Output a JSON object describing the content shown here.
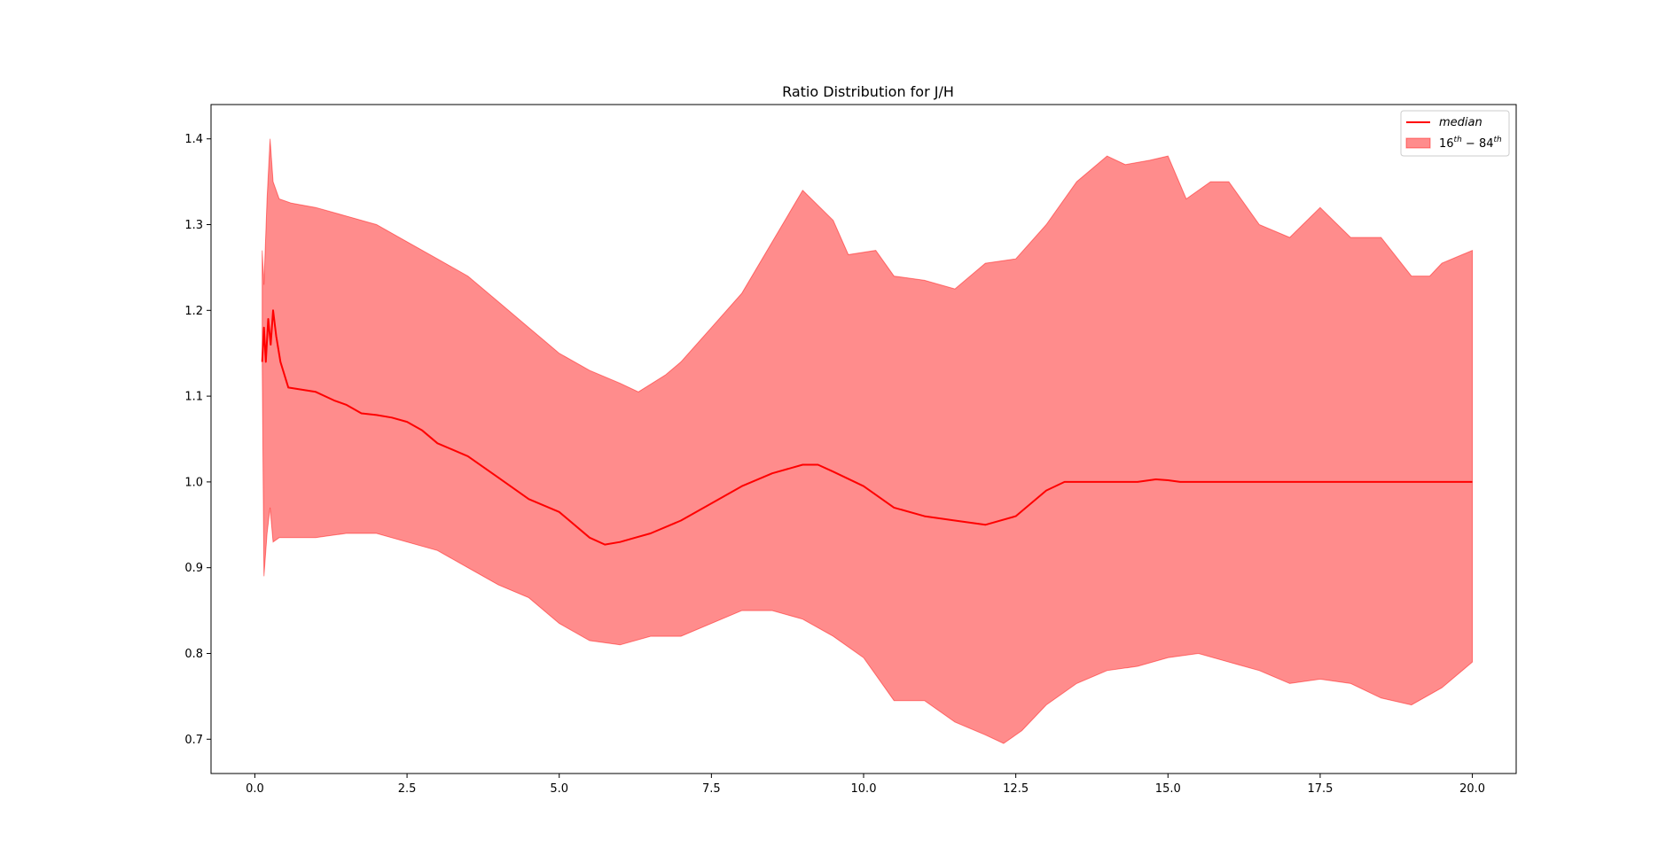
{
  "chart_data": {
    "type": "line",
    "title": "Ratio Distribution for J/H",
    "xlabel": "",
    "ylabel": "",
    "xlim": [
      -0.72,
      20.72
    ],
    "ylim": [
      0.66,
      1.44
    ],
    "xticks": [
      0.0,
      2.5,
      5.0,
      7.5,
      10.0,
      12.5,
      15.0,
      17.5,
      20.0
    ],
    "xtick_labels": [
      "0.0",
      "2.5",
      "5.0",
      "7.5",
      "10.0",
      "12.5",
      "15.0",
      "17.5",
      "20.0"
    ],
    "yticks": [
      0.7,
      0.8,
      0.9,
      1.0,
      1.1,
      1.2,
      1.3,
      1.4
    ],
    "ytick_labels": [
      "0.7",
      "0.8",
      "0.9",
      "1.0",
      "1.1",
      "1.2",
      "1.3",
      "1.4"
    ],
    "grid": false,
    "legend_position": "top-right",
    "series": [
      {
        "name": "median",
        "kind": "line",
        "color": "#ff0000",
        "points": [
          [
            0.12,
            1.14
          ],
          [
            0.15,
            1.18
          ],
          [
            0.18,
            1.14
          ],
          [
            0.22,
            1.19
          ],
          [
            0.26,
            1.16
          ],
          [
            0.3,
            1.2
          ],
          [
            0.35,
            1.17
          ],
          [
            0.42,
            1.14
          ],
          [
            0.55,
            1.11
          ],
          [
            1.0,
            1.105
          ],
          [
            1.3,
            1.095
          ],
          [
            1.5,
            1.09
          ],
          [
            1.75,
            1.08
          ],
          [
            2.0,
            1.078
          ],
          [
            2.25,
            1.075
          ],
          [
            2.5,
            1.07
          ],
          [
            2.75,
            1.06
          ],
          [
            3.0,
            1.045
          ],
          [
            3.5,
            1.03
          ],
          [
            4.0,
            1.005
          ],
          [
            4.5,
            0.98
          ],
          [
            5.0,
            0.965
          ],
          [
            5.5,
            0.935
          ],
          [
            5.75,
            0.927
          ],
          [
            6.0,
            0.93
          ],
          [
            6.25,
            0.935
          ],
          [
            6.5,
            0.94
          ],
          [
            7.0,
            0.955
          ],
          [
            7.5,
            0.975
          ],
          [
            8.0,
            0.995
          ],
          [
            8.5,
            1.01
          ],
          [
            9.0,
            1.02
          ],
          [
            9.25,
            1.02
          ],
          [
            9.5,
            1.012
          ],
          [
            10.0,
            0.995
          ],
          [
            10.5,
            0.97
          ],
          [
            11.0,
            0.96
          ],
          [
            11.5,
            0.955
          ],
          [
            12.0,
            0.95
          ],
          [
            12.5,
            0.96
          ],
          [
            12.75,
            0.975
          ],
          [
            13.0,
            0.99
          ],
          [
            13.3,
            1.0
          ],
          [
            14.5,
            1.0
          ],
          [
            14.8,
            1.003
          ],
          [
            15.0,
            1.002
          ],
          [
            15.2,
            1.0
          ],
          [
            20.0,
            1.0
          ]
        ]
      },
      {
        "name": "16^{th} - 84^{th}",
        "kind": "band",
        "color": "#ff0000",
        "opacity": 0.45,
        "upper": [
          [
            0.12,
            1.27
          ],
          [
            0.15,
            1.23
          ],
          [
            0.2,
            1.33
          ],
          [
            0.25,
            1.4
          ],
          [
            0.3,
            1.35
          ],
          [
            0.4,
            1.33
          ],
          [
            0.6,
            1.325
          ],
          [
            1.0,
            1.32
          ],
          [
            1.5,
            1.31
          ],
          [
            2.0,
            1.3
          ],
          [
            2.5,
            1.28
          ],
          [
            3.0,
            1.26
          ],
          [
            3.5,
            1.24
          ],
          [
            4.0,
            1.21
          ],
          [
            4.5,
            1.18
          ],
          [
            5.0,
            1.15
          ],
          [
            5.5,
            1.13
          ],
          [
            6.0,
            1.115
          ],
          [
            6.3,
            1.105
          ],
          [
            6.75,
            1.125
          ],
          [
            7.0,
            1.14
          ],
          [
            7.5,
            1.18
          ],
          [
            8.0,
            1.22
          ],
          [
            8.5,
            1.28
          ],
          [
            9.0,
            1.34
          ],
          [
            9.5,
            1.305
          ],
          [
            9.75,
            1.265
          ],
          [
            10.2,
            1.27
          ],
          [
            10.5,
            1.24
          ],
          [
            11.0,
            1.235
          ],
          [
            11.5,
            1.225
          ],
          [
            12.0,
            1.255
          ],
          [
            12.5,
            1.26
          ],
          [
            13.0,
            1.3
          ],
          [
            13.5,
            1.35
          ],
          [
            14.0,
            1.38
          ],
          [
            14.3,
            1.37
          ],
          [
            14.7,
            1.375
          ],
          [
            15.0,
            1.38
          ],
          [
            15.3,
            1.33
          ],
          [
            15.7,
            1.35
          ],
          [
            16.0,
            1.35
          ],
          [
            16.5,
            1.3
          ],
          [
            17.0,
            1.285
          ],
          [
            17.5,
            1.32
          ],
          [
            18.0,
            1.285
          ],
          [
            18.5,
            1.285
          ],
          [
            19.0,
            1.24
          ],
          [
            19.3,
            1.24
          ],
          [
            19.5,
            1.255
          ],
          [
            20.0,
            1.27
          ]
        ],
        "lower": [
          [
            0.12,
            1.14
          ],
          [
            0.15,
            0.89
          ],
          [
            0.2,
            0.94
          ],
          [
            0.25,
            0.97
          ],
          [
            0.3,
            0.93
          ],
          [
            0.4,
            0.935
          ],
          [
            0.6,
            0.935
          ],
          [
            1.0,
            0.935
          ],
          [
            1.5,
            0.94
          ],
          [
            2.0,
            0.94
          ],
          [
            2.5,
            0.93
          ],
          [
            3.0,
            0.92
          ],
          [
            3.5,
            0.9
          ],
          [
            4.0,
            0.88
          ],
          [
            4.5,
            0.865
          ],
          [
            5.0,
            0.835
          ],
          [
            5.5,
            0.815
          ],
          [
            6.0,
            0.81
          ],
          [
            6.5,
            0.82
          ],
          [
            7.0,
            0.82
          ],
          [
            7.5,
            0.835
          ],
          [
            8.0,
            0.85
          ],
          [
            8.5,
            0.85
          ],
          [
            9.0,
            0.84
          ],
          [
            9.5,
            0.82
          ],
          [
            10.0,
            0.795
          ],
          [
            10.5,
            0.745
          ],
          [
            11.0,
            0.745
          ],
          [
            11.5,
            0.72
          ],
          [
            12.0,
            0.705
          ],
          [
            12.3,
            0.695
          ],
          [
            12.6,
            0.71
          ],
          [
            13.0,
            0.74
          ],
          [
            13.5,
            0.765
          ],
          [
            14.0,
            0.78
          ],
          [
            14.5,
            0.785
          ],
          [
            15.0,
            0.795
          ],
          [
            15.5,
            0.8
          ],
          [
            16.0,
            0.79
          ],
          [
            16.5,
            0.78
          ],
          [
            17.0,
            0.765
          ],
          [
            17.5,
            0.77
          ],
          [
            18.0,
            0.765
          ],
          [
            18.5,
            0.748
          ],
          [
            19.0,
            0.74
          ],
          [
            19.5,
            0.76
          ],
          [
            20.0,
            0.79
          ]
        ]
      }
    ]
  },
  "legend": {
    "median_label": "median",
    "band_label_base1": "16",
    "band_label_sup1": "th",
    "band_label_mid": " − 84",
    "band_label_sup2": "th"
  }
}
